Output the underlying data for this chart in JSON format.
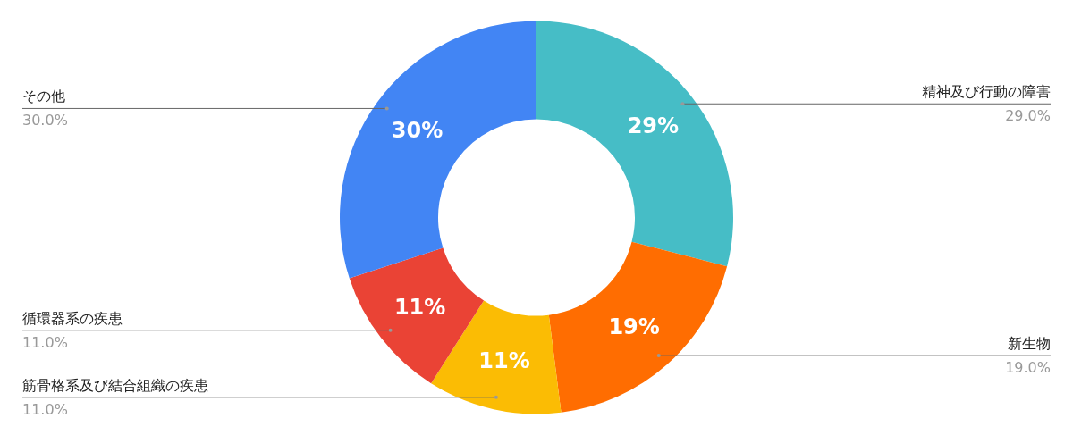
{
  "chart_data": {
    "type": "donut",
    "categories": [
      "精神及び行動の障害",
      "新生物",
      "筋骨格系及び結合組織の疾患",
      "循環器系の疾患",
      "その他"
    ],
    "values": [
      29,
      19,
      11,
      11,
      30
    ],
    "colors": [
      "#46bdc6",
      "#ff6d01",
      "#fbbc04",
      "#ea4335",
      "#4285f4"
    ],
    "value_labels": [
      "29%",
      "19%",
      "11%",
      "11%",
      "30%"
    ],
    "annotations": [
      "29.0%",
      "19.0%",
      "11.0%",
      "11.0%",
      "30.0%"
    ]
  }
}
